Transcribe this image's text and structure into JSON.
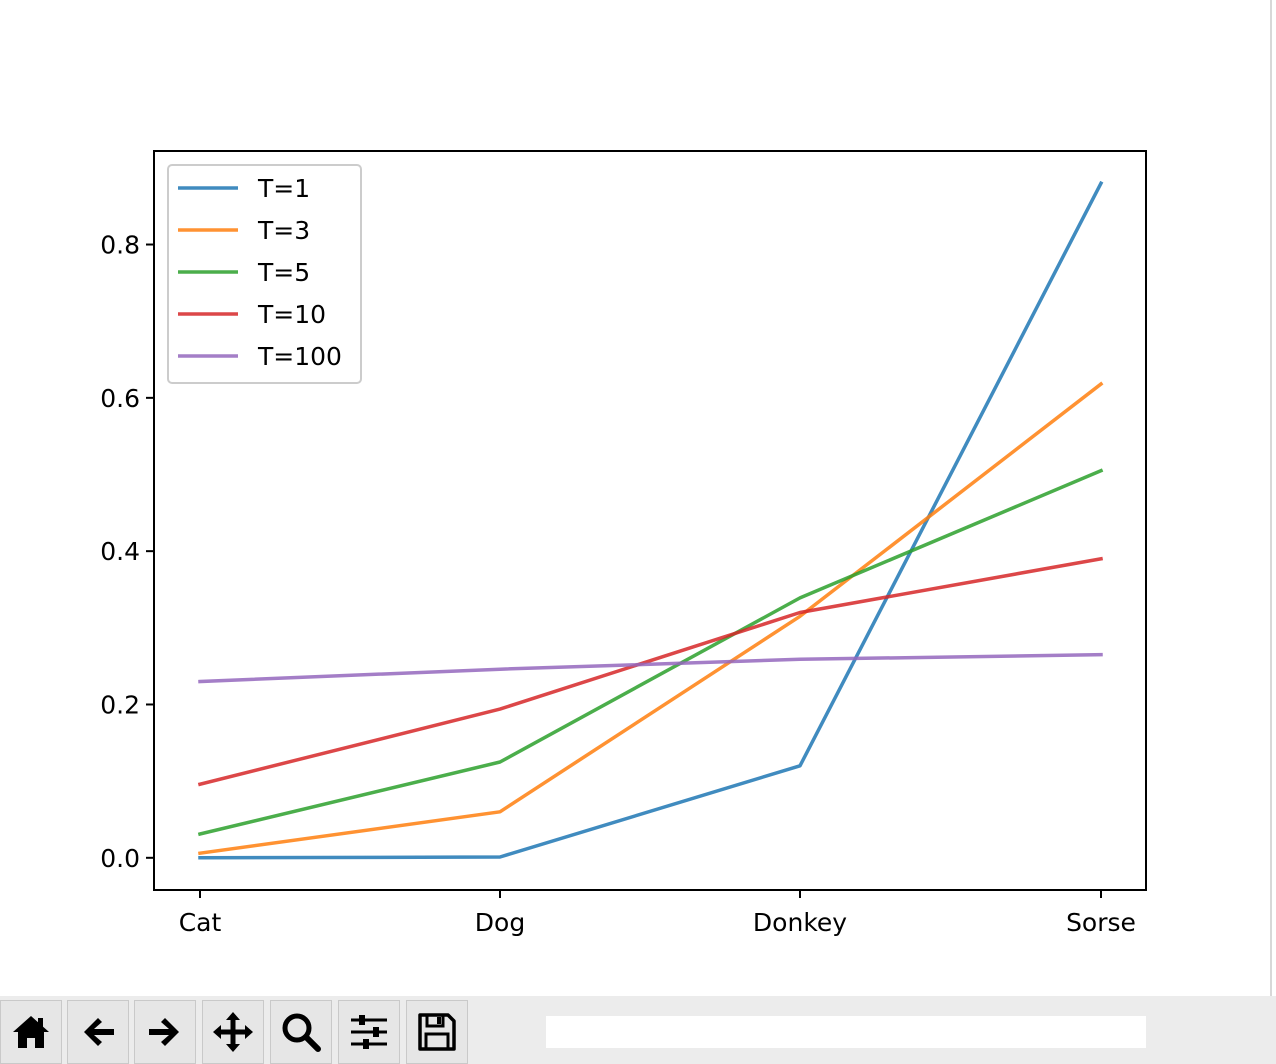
{
  "chart_data": {
    "type": "line",
    "categories": [
      "Cat",
      "Dog",
      "Donkey",
      "Sorse"
    ],
    "series": [
      {
        "name": "T=1",
        "color": "#1f77b4",
        "values": [
          0.0,
          0.001,
          0.12,
          0.88
        ]
      },
      {
        "name": "T=3",
        "color": "#ff7f0e",
        "values": [
          0.006,
          0.06,
          0.315,
          0.618
        ]
      },
      {
        "name": "T=5",
        "color": "#2ca02c",
        "values": [
          0.031,
          0.125,
          0.339,
          0.505
        ]
      },
      {
        "name": "T=10",
        "color": "#d62728",
        "values": [
          0.096,
          0.194,
          0.32,
          0.39
        ]
      },
      {
        "name": "T=100",
        "color": "#9467bd",
        "values": [
          0.23,
          0.246,
          0.259,
          0.265
        ]
      }
    ],
    "line_alpha": 0.85,
    "ylim": [
      -0.042,
      0.922
    ],
    "yticks": [
      0.0,
      0.2,
      0.4,
      0.6,
      0.8
    ],
    "ytick_labels": [
      "0.0",
      "0.2",
      "0.4",
      "0.6",
      "0.8"
    ],
    "title": "",
    "xlabel": "",
    "ylabel": "",
    "grid": false,
    "legend_position": "upper left"
  },
  "toolbar": {
    "buttons": [
      {
        "name": "home-button",
        "icon": "home-icon"
      },
      {
        "name": "back-button",
        "icon": "arrow-left-icon"
      },
      {
        "name": "forward-button",
        "icon": "arrow-right-icon"
      },
      {
        "name": "pan-button",
        "icon": "move-icon"
      },
      {
        "name": "zoom-button",
        "icon": "magnifier-icon"
      },
      {
        "name": "configure-subplots-button",
        "icon": "sliders-icon"
      },
      {
        "name": "save-button",
        "icon": "floppy-disk-icon"
      }
    ],
    "message": ""
  }
}
